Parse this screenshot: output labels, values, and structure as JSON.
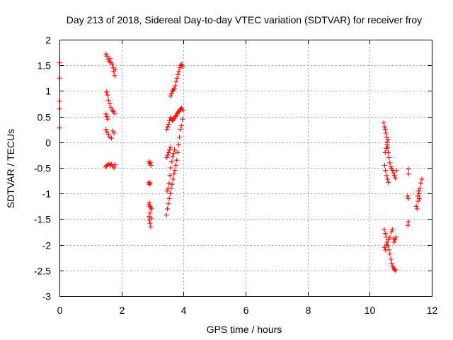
{
  "chart_data": {
    "type": "scatter",
    "title": "Day 213 of 2018, Sidereal Day-to-day VTEC variation (SDTVAR) for receiver froy",
    "xlabel": "GPS time / hours",
    "ylabel": "SDTVAR / TECUs",
    "xlim": [
      0,
      12
    ],
    "ylim": [
      -3,
      2
    ],
    "x_ticks": [
      0,
      2,
      4,
      6,
      8,
      10,
      12
    ],
    "x_tick_labels": [
      "0",
      "2",
      "4",
      "6",
      "8",
      "10",
      "12"
    ],
    "y_ticks": [
      -3,
      -2.5,
      -2,
      -1.5,
      -1,
      -0.5,
      0,
      0.5,
      1,
      1.5,
      2
    ],
    "y_tick_labels": [
      "-3",
      "-2.5",
      "-2",
      "-1.5",
      "-1",
      "-0.5",
      "0",
      "0.5",
      "1",
      "1.5",
      "2"
    ],
    "grid": true,
    "marker": "+",
    "marker_color": "#ff0000",
    "series": [
      {
        "values": [
          {
            "x": 0.0,
            "y": 1.55
          },
          {
            "x": 0.0,
            "y": 1.25
          },
          {
            "x": 0.0,
            "y": 0.8
          },
          {
            "x": 0.0,
            "y": 0.65
          },
          {
            "x": 0.0,
            "y": 0.28
          },
          {
            "x": 1.5,
            "y": 1.72
          },
          {
            "x": 1.53,
            "y": 1.68
          },
          {
            "x": 1.57,
            "y": 1.62
          },
          {
            "x": 1.6,
            "y": 1.58
          },
          {
            "x": 1.63,
            "y": 1.63
          },
          {
            "x": 1.66,
            "y": 1.55
          },
          {
            "x": 1.7,
            "y": 1.52
          },
          {
            "x": 1.73,
            "y": 1.45
          },
          {
            "x": 1.75,
            "y": 1.38
          },
          {
            "x": 1.78,
            "y": 1.3
          },
          {
            "x": 1.8,
            "y": 1.42
          },
          {
            "x": 1.52,
            "y": 0.98
          },
          {
            "x": 1.55,
            "y": 0.92
          },
          {
            "x": 1.58,
            "y": 0.82
          },
          {
            "x": 1.62,
            "y": 0.75
          },
          {
            "x": 1.66,
            "y": 0.68
          },
          {
            "x": 1.7,
            "y": 0.62
          },
          {
            "x": 1.74,
            "y": 0.6
          },
          {
            "x": 1.78,
            "y": 0.56
          },
          {
            "x": 1.5,
            "y": 0.55
          },
          {
            "x": 1.53,
            "y": 0.5
          },
          {
            "x": 1.55,
            "y": 0.45
          },
          {
            "x": 1.5,
            "y": 0.25
          },
          {
            "x": 1.53,
            "y": 0.2
          },
          {
            "x": 1.58,
            "y": 0.15
          },
          {
            "x": 1.62,
            "y": 0.1
          },
          {
            "x": 1.68,
            "y": 0.08
          },
          {
            "x": 1.72,
            "y": 0.22
          },
          {
            "x": 1.76,
            "y": 0.18
          },
          {
            "x": 1.48,
            "y": -0.48
          },
          {
            "x": 1.52,
            "y": -0.46
          },
          {
            "x": 1.56,
            "y": -0.44
          },
          {
            "x": 1.6,
            "y": -0.42
          },
          {
            "x": 1.64,
            "y": -0.45
          },
          {
            "x": 1.68,
            "y": -0.43
          },
          {
            "x": 1.72,
            "y": -0.47
          },
          {
            "x": 1.76,
            "y": -0.5
          },
          {
            "x": 1.8,
            "y": -0.44
          },
          {
            "x": 2.88,
            "y": -0.38
          },
          {
            "x": 2.9,
            "y": -0.42
          },
          {
            "x": 2.93,
            "y": -0.4
          },
          {
            "x": 2.95,
            "y": -0.45
          },
          {
            "x": 2.88,
            "y": -0.78
          },
          {
            "x": 2.9,
            "y": -0.82
          },
          {
            "x": 2.92,
            "y": -0.8
          },
          {
            "x": 2.88,
            "y": -1.22
          },
          {
            "x": 2.9,
            "y": -1.18
          },
          {
            "x": 2.92,
            "y": -1.25
          },
          {
            "x": 2.95,
            "y": -1.28
          },
          {
            "x": 2.97,
            "y": -1.3
          },
          {
            "x": 2.88,
            "y": -1.45
          },
          {
            "x": 2.9,
            "y": -1.52
          },
          {
            "x": 2.92,
            "y": -1.58
          },
          {
            "x": 2.94,
            "y": -1.65
          },
          {
            "x": 2.96,
            "y": -1.48
          },
          {
            "x": 2.92,
            "y": -1.38
          },
          {
            "x": 3.45,
            "y": -1.42
          },
          {
            "x": 3.48,
            "y": -1.3
          },
          {
            "x": 3.51,
            "y": -1.2
          },
          {
            "x": 3.54,
            "y": -1.1
          },
          {
            "x": 3.57,
            "y": -1.0
          },
          {
            "x": 3.6,
            "y": -0.9
          },
          {
            "x": 3.63,
            "y": -0.82
          },
          {
            "x": 3.66,
            "y": -0.72
          },
          {
            "x": 3.69,
            "y": -0.62
          },
          {
            "x": 3.72,
            "y": -0.55
          },
          {
            "x": 3.75,
            "y": -0.45
          },
          {
            "x": 3.78,
            "y": -0.35
          },
          {
            "x": 3.81,
            "y": -0.2
          },
          {
            "x": 3.84,
            "y": -0.05
          },
          {
            "x": 3.87,
            "y": 0.1
          },
          {
            "x": 3.9,
            "y": 0.25
          },
          {
            "x": 3.93,
            "y": 0.32
          },
          {
            "x": 3.96,
            "y": 0.45
          },
          {
            "x": 3.99,
            "y": 0.62
          },
          {
            "x": 3.47,
            "y": -0.95
          },
          {
            "x": 3.5,
            "y": -0.9
          },
          {
            "x": 3.53,
            "y": -0.8
          },
          {
            "x": 3.56,
            "y": -0.65
          },
          {
            "x": 3.59,
            "y": -0.5
          },
          {
            "x": 3.62,
            "y": -0.38
          },
          {
            "x": 3.65,
            "y": -0.28
          },
          {
            "x": 3.68,
            "y": -0.22
          },
          {
            "x": 3.71,
            "y": -0.15
          },
          {
            "x": 3.46,
            "y": -0.3
          },
          {
            "x": 3.49,
            "y": -0.25
          },
          {
            "x": 3.52,
            "y": -0.2
          },
          {
            "x": 3.55,
            "y": -0.15
          },
          {
            "x": 3.58,
            "y": -0.1
          },
          {
            "x": 3.46,
            "y": 0.25
          },
          {
            "x": 3.49,
            "y": 0.3
          },
          {
            "x": 3.52,
            "y": 0.35
          },
          {
            "x": 3.55,
            "y": 0.42
          },
          {
            "x": 3.58,
            "y": 0.48
          },
          {
            "x": 3.61,
            "y": 0.45
          },
          {
            "x": 3.64,
            "y": 0.42
          },
          {
            "x": 3.67,
            "y": 0.44
          },
          {
            "x": 3.7,
            "y": 0.46
          },
          {
            "x": 3.73,
            "y": 0.5
          },
          {
            "x": 3.76,
            "y": 0.52
          },
          {
            "x": 3.79,
            "y": 0.55
          },
          {
            "x": 3.82,
            "y": 0.58
          },
          {
            "x": 3.85,
            "y": 0.6
          },
          {
            "x": 3.88,
            "y": 0.63
          },
          {
            "x": 3.91,
            "y": 0.65
          },
          {
            "x": 3.94,
            "y": 0.67
          },
          {
            "x": 3.58,
            "y": 0.9
          },
          {
            "x": 3.61,
            "y": 0.95
          },
          {
            "x": 3.64,
            "y": 1.0
          },
          {
            "x": 3.67,
            "y": 1.02
          },
          {
            "x": 3.7,
            "y": 1.05
          },
          {
            "x": 3.73,
            "y": 1.1
          },
          {
            "x": 3.76,
            "y": 1.18
          },
          {
            "x": 3.79,
            "y": 1.25
          },
          {
            "x": 3.82,
            "y": 1.32
          },
          {
            "x": 3.85,
            "y": 1.38
          },
          {
            "x": 3.88,
            "y": 1.45
          },
          {
            "x": 3.91,
            "y": 1.5
          },
          {
            "x": 3.94,
            "y": 1.52
          },
          {
            "x": 3.97,
            "y": 1.48
          },
          {
            "x": 10.45,
            "y": 0.38
          },
          {
            "x": 10.48,
            "y": 0.3
          },
          {
            "x": 10.5,
            "y": 0.25
          },
          {
            "x": 10.52,
            "y": 0.18
          },
          {
            "x": 10.54,
            "y": 0.1
          },
          {
            "x": 10.56,
            "y": 0.0
          },
          {
            "x": 10.58,
            "y": -0.1
          },
          {
            "x": 10.6,
            "y": -0.2
          },
          {
            "x": 10.62,
            "y": -0.3
          },
          {
            "x": 10.65,
            "y": -0.4
          },
          {
            "x": 10.68,
            "y": -0.48
          },
          {
            "x": 10.71,
            "y": -0.52
          },
          {
            "x": 10.74,
            "y": -0.55
          },
          {
            "x": 10.77,
            "y": -0.6
          },
          {
            "x": 10.8,
            "y": -0.65
          },
          {
            "x": 10.83,
            "y": -0.7
          },
          {
            "x": 10.86,
            "y": -0.55
          },
          {
            "x": 10.48,
            "y": -0.45
          },
          {
            "x": 10.51,
            "y": -0.55
          },
          {
            "x": 10.54,
            "y": -0.65
          },
          {
            "x": 10.57,
            "y": -0.72
          },
          {
            "x": 10.6,
            "y": -0.78
          },
          {
            "x": 10.5,
            "y": -0.2
          },
          {
            "x": 10.53,
            "y": -0.12
          },
          {
            "x": 10.56,
            "y": -0.05
          },
          {
            "x": 10.59,
            "y": 0.05
          },
          {
            "x": 10.47,
            "y": -1.7
          },
          {
            "x": 10.5,
            "y": -1.78
          },
          {
            "x": 10.53,
            "y": -1.85
          },
          {
            "x": 10.56,
            "y": -1.95
          },
          {
            "x": 10.59,
            "y": -2.02
          },
          {
            "x": 10.62,
            "y": -2.1
          },
          {
            "x": 10.65,
            "y": -2.18
          },
          {
            "x": 10.68,
            "y": -2.28
          },
          {
            "x": 10.71,
            "y": -2.36
          },
          {
            "x": 10.74,
            "y": -2.42
          },
          {
            "x": 10.77,
            "y": -2.45
          },
          {
            "x": 10.8,
            "y": -2.48
          },
          {
            "x": 10.83,
            "y": -2.5
          },
          {
            "x": 10.48,
            "y": -2.05
          },
          {
            "x": 10.51,
            "y": -2.1
          },
          {
            "x": 10.54,
            "y": -2.0
          },
          {
            "x": 10.6,
            "y": -1.9
          },
          {
            "x": 10.65,
            "y": -1.85
          },
          {
            "x": 10.7,
            "y": -1.75
          },
          {
            "x": 10.73,
            "y": -1.7
          },
          {
            "x": 10.76,
            "y": -1.88
          },
          {
            "x": 10.79,
            "y": -1.95
          },
          {
            "x": 10.82,
            "y": -1.9
          },
          {
            "x": 10.85,
            "y": -1.85
          },
          {
            "x": 11.25,
            "y": -0.52
          },
          {
            "x": 11.25,
            "y": -0.62
          },
          {
            "x": 11.22,
            "y": -1.05
          },
          {
            "x": 11.24,
            "y": -1.1
          },
          {
            "x": 11.25,
            "y": -1.55
          },
          {
            "x": 11.23,
            "y": -1.62
          },
          {
            "x": 11.5,
            "y": -1.25
          },
          {
            "x": 11.53,
            "y": -1.3
          },
          {
            "x": 11.56,
            "y": -1.15
          },
          {
            "x": 11.59,
            "y": -1.0
          },
          {
            "x": 11.62,
            "y": -0.9
          },
          {
            "x": 11.65,
            "y": -0.8
          },
          {
            "x": 11.68,
            "y": -0.72
          },
          {
            "x": 11.55,
            "y": -1.05
          },
          {
            "x": 11.58,
            "y": -0.95
          },
          {
            "x": 11.6,
            "y": -1.1
          }
        ]
      }
    ]
  }
}
